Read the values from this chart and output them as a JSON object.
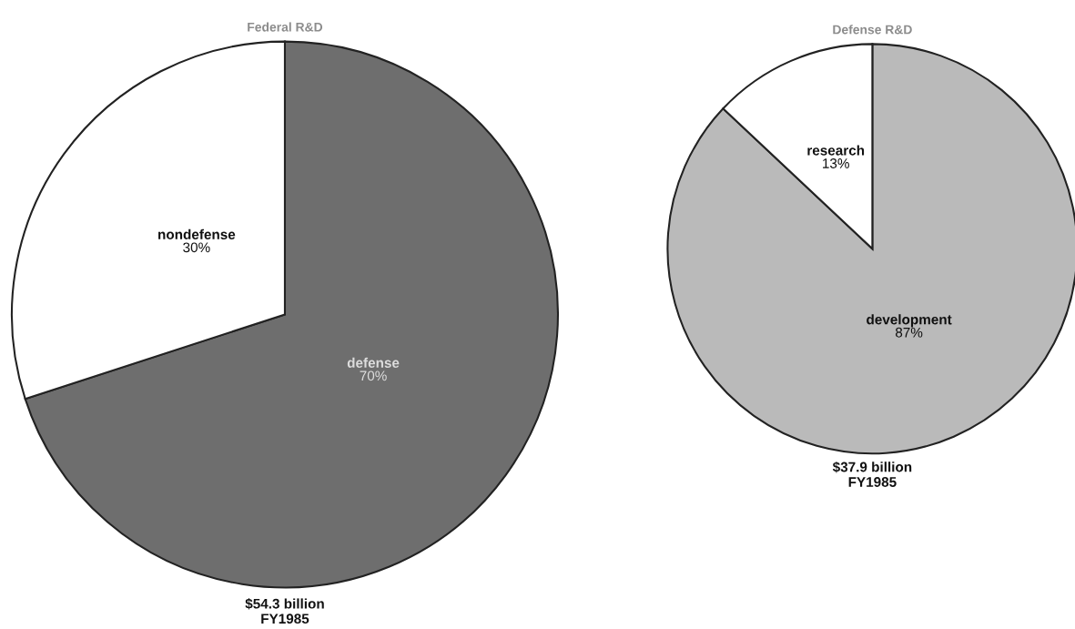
{
  "chart_data": [
    {
      "type": "pie",
      "title": "Federal R&D",
      "categories": [
        "defense",
        "nondefense"
      ],
      "values": [
        70,
        30
      ],
      "colors": [
        "#6e6e6e",
        "#ffffff"
      ],
      "value_labels": [
        "70%",
        "30%"
      ],
      "annotations": [
        "$54.3 billion\nFY1985"
      ]
    },
    {
      "type": "pie",
      "title": "Defense R&D",
      "categories": [
        "development",
        "research"
      ],
      "values": [
        87,
        13
      ],
      "colors": [
        "#bababa",
        "#ffffff"
      ],
      "value_labels": [
        "87%",
        "13%"
      ],
      "annotations": [
        "$37.9 billion\nFY1985"
      ]
    }
  ]
}
